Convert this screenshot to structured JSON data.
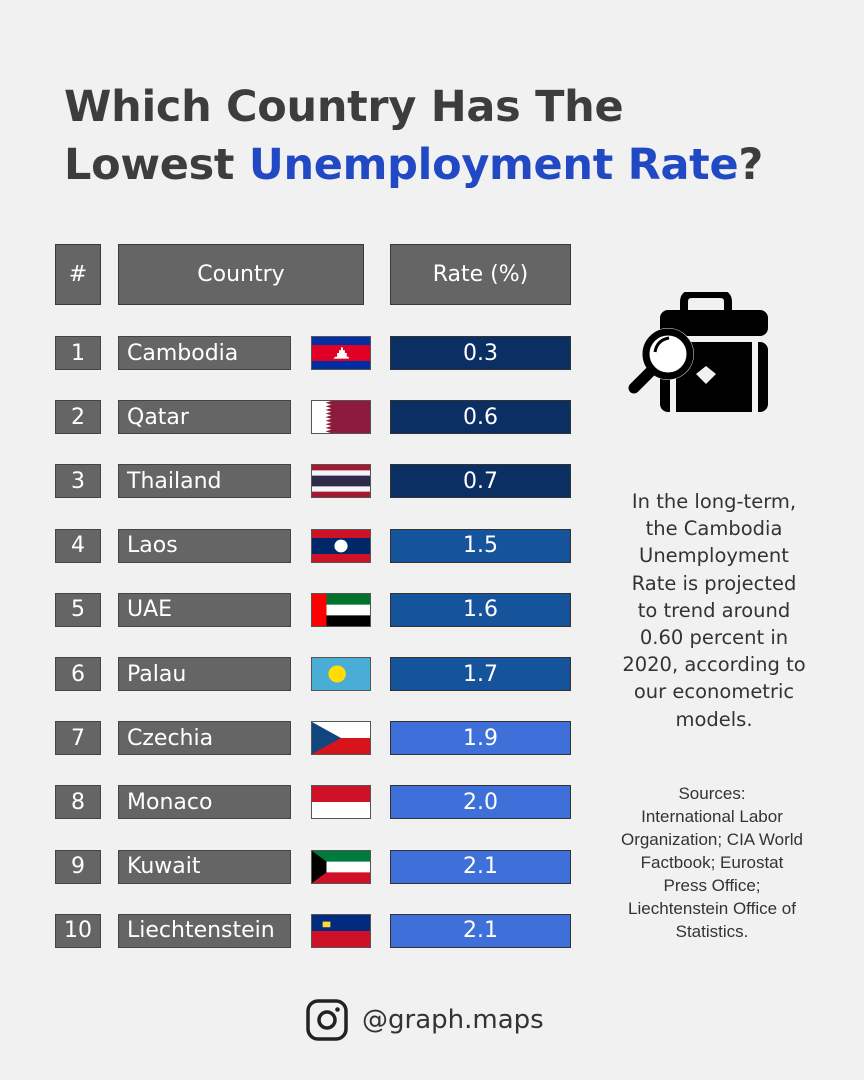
{
  "title": {
    "line1": "Which Country Has The",
    "line2_plain": "Lowest ",
    "line2_accent": "Unemployment Rate",
    "line2_end": "?"
  },
  "headers": {
    "rank": "#",
    "country": "Country",
    "rate": "Rate (%)"
  },
  "colors": {
    "dark": "#0b2f63",
    "mid": "#15539b",
    "light": "#3f6fd8",
    "accent": "#2249c4"
  },
  "chart_data": {
    "type": "table",
    "columns": [
      "#",
      "Country",
      "Rate (%)"
    ],
    "rows": [
      {
        "rank": "1",
        "country": "Cambodia",
        "rate": "0.3",
        "flag": "cambodia",
        "tier": "dark"
      },
      {
        "rank": "2",
        "country": "Qatar",
        "rate": "0.6",
        "flag": "qatar",
        "tier": "dark"
      },
      {
        "rank": "3",
        "country": "Thailand",
        "rate": "0.7",
        "flag": "thailand",
        "tier": "dark"
      },
      {
        "rank": "4",
        "country": "Laos",
        "rate": "1.5",
        "flag": "laos",
        "tier": "mid"
      },
      {
        "rank": "5",
        "country": "UAE",
        "rate": "1.6",
        "flag": "uae",
        "tier": "mid"
      },
      {
        "rank": "6",
        "country": "Palau",
        "rate": "1.7",
        "flag": "palau",
        "tier": "mid"
      },
      {
        "rank": "7",
        "country": "Czechia",
        "rate": "1.9",
        "flag": "czechia",
        "tier": "light"
      },
      {
        "rank": "8",
        "country": "Monaco",
        "rate": "2.0",
        "flag": "monaco",
        "tier": "light"
      },
      {
        "rank": "9",
        "country": "Kuwait",
        "rate": "2.1",
        "flag": "kuwait",
        "tier": "light"
      },
      {
        "rank": "10",
        "country": "Liechtenstein",
        "rate": "2.1",
        "flag": "liechtenstein",
        "tier": "light"
      }
    ]
  },
  "icon": "briefcase-search-icon",
  "note_lines": [
    "In the long-term,",
    "the Cambodia",
    "Unemployment",
    "Rate is projected",
    "to trend around",
    "0.60 percent in",
    "2020, according to",
    "our econometric",
    "models."
  ],
  "sources_lines": [
    "Sources:",
    "International Labor",
    "Organization; CIA World",
    "Factbook; Eurostat",
    "Press Office;",
    "Liechtenstein Office of",
    "Statistics."
  ],
  "handle": {
    "icon": "instagram-icon",
    "text": "@graph.maps"
  }
}
